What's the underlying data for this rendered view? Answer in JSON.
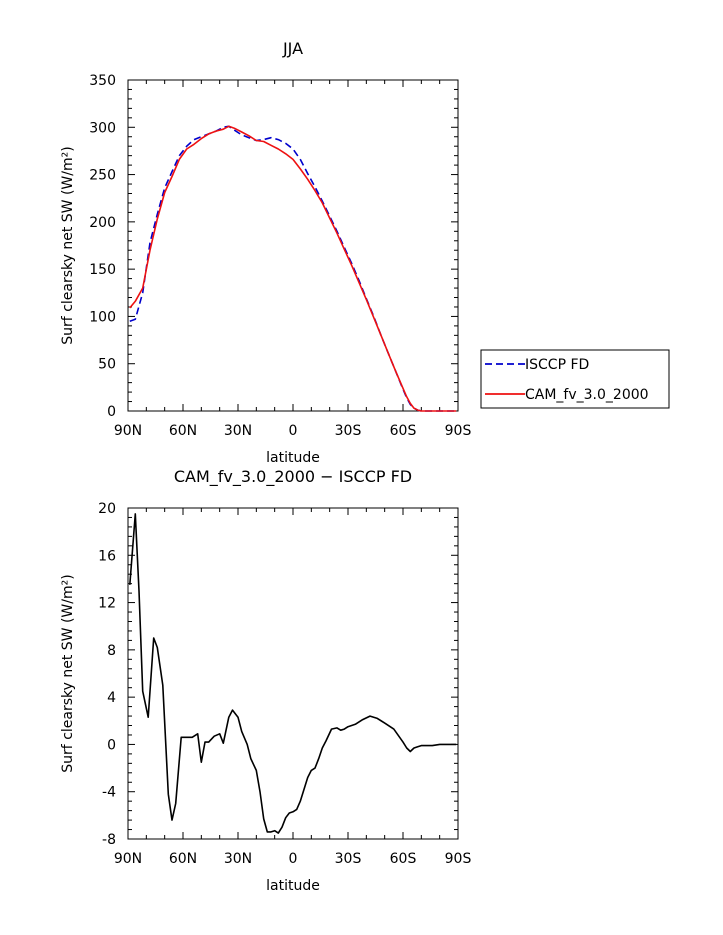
{
  "chart_data": [
    {
      "type": "line",
      "title": "JJA",
      "xlabel": "latitude",
      "ylabel": "Surf clearsky net SW (W/m²)",
      "xlim": [
        90,
        -90
      ],
      "ylim": [
        0,
        350
      ],
      "x_ticks": [
        90,
        60,
        30,
        0,
        -30,
        -60,
        -90
      ],
      "x_tick_labels": [
        "90N",
        "60N",
        "30N",
        "0",
        "30S",
        "60S",
        "90S"
      ],
      "y_ticks": [
        0,
        50,
        100,
        150,
        200,
        250,
        300,
        350
      ],
      "legend_position": "outside-right",
      "series": [
        {
          "name": "ISCCP FD",
          "color": "#0000cc",
          "dash": "dashed",
          "x": [
            89,
            86,
            82,
            78,
            74,
            70,
            66,
            62,
            58,
            54,
            50,
            46,
            42,
            38,
            35,
            32,
            28,
            24,
            20,
            16,
            12,
            8,
            4,
            0,
            -4,
            -8,
            -12,
            -16,
            -20,
            -24,
            -28,
            -32,
            -36,
            -40,
            -44,
            -48,
            -52,
            -56,
            -60,
            -62,
            -64,
            -66,
            -68,
            -70,
            -74,
            -78,
            -82,
            -86,
            -89
          ],
          "y": [
            95,
            97,
            125,
            178,
            208,
            236,
            253,
            270,
            280,
            287,
            290,
            293,
            296,
            300,
            301,
            297,
            292,
            289,
            286,
            287,
            289,
            287,
            283,
            277,
            266,
            251,
            237,
            222,
            206,
            190,
            173,
            156,
            138,
            119,
            100,
            80,
            61,
            42,
            23,
            14,
            7,
            3,
            1,
            0,
            0,
            0,
            0,
            0,
            0
          ]
        },
        {
          "name": "CAM_fv_3.0_2000",
          "color": "#ee1111",
          "dash": "solid",
          "x": [
            89,
            86,
            82,
            78,
            74,
            70,
            66,
            62,
            58,
            54,
            50,
            46,
            42,
            38,
            35,
            32,
            28,
            24,
            20,
            16,
            12,
            8,
            4,
            0,
            -4,
            -8,
            -12,
            -16,
            -20,
            -24,
            -28,
            -32,
            -36,
            -40,
            -44,
            -48,
            -52,
            -56,
            -60,
            -62,
            -64,
            -66,
            -68,
            -70,
            -74,
            -78,
            -82,
            -86,
            -89
          ],
          "y": [
            109,
            116,
            130,
            170,
            203,
            231,
            248,
            266,
            277,
            282,
            288,
            293,
            296,
            298,
            301,
            299,
            295,
            291,
            286,
            285,
            281,
            277,
            272,
            266,
            256,
            245,
            233,
            220,
            204,
            188,
            171,
            154,
            136,
            118,
            99,
            80,
            61,
            42,
            24,
            15,
            8,
            3,
            1,
            0,
            0,
            0,
            0,
            0,
            0
          ]
        }
      ]
    },
    {
      "type": "line",
      "title": "CAM_fv_3.0_2000 − ISCCP FD",
      "xlabel": "latitude",
      "ylabel": "Surf clearsky net SW (W/m²)",
      "xlim": [
        90,
        -90
      ],
      "ylim": [
        -8,
        20
      ],
      "x_ticks": [
        90,
        60,
        30,
        0,
        -30,
        -60,
        -90
      ],
      "x_tick_labels": [
        "90N",
        "60N",
        "30N",
        "0",
        "30S",
        "60S",
        "90S"
      ],
      "y_ticks": [
        -8,
        -4,
        0,
        4,
        8,
        12,
        16,
        20
      ],
      "series": [
        {
          "color": "#000000",
          "dash": "solid",
          "x": [
            89,
            86,
            84,
            82,
            79,
            76,
            74,
            71,
            68,
            66,
            64,
            61,
            58,
            55,
            52,
            50,
            48,
            46,
            43,
            40,
            38,
            35,
            33,
            30,
            28,
            25,
            23,
            20,
            18,
            16,
            14,
            12,
            10,
            8,
            6,
            4,
            2,
            0,
            -2,
            -4,
            -6,
            -8,
            -10,
            -12,
            -14,
            -16,
            -18,
            -21,
            -24,
            -26,
            -28,
            -30,
            -34,
            -38,
            -42,
            -46,
            -50,
            -55,
            -60,
            -62,
            -64,
            -66,
            -68,
            -70,
            -72,
            -76,
            -80,
            -85,
            -89
          ],
          "y": [
            13.5,
            19.5,
            13.0,
            4.5,
            2.3,
            9.0,
            8.2,
            5.0,
            -4.2,
            -6.4,
            -5.0,
            0.6,
            0.6,
            0.6,
            0.9,
            -1.5,
            0.2,
            0.2,
            0.7,
            0.9,
            0.1,
            2.3,
            2.9,
            2.3,
            1.1,
            0.0,
            -1.2,
            -2.2,
            -4.0,
            -6.3,
            -7.4,
            -7.4,
            -7.3,
            -7.5,
            -7.0,
            -6.2,
            -5.8,
            -5.7,
            -5.5,
            -4.8,
            -3.8,
            -2.8,
            -2.2,
            -2.0,
            -1.2,
            -0.3,
            0.3,
            1.3,
            1.4,
            1.2,
            1.3,
            1.5,
            1.7,
            2.1,
            2.4,
            2.2,
            1.8,
            1.3,
            0.2,
            -0.3,
            -0.6,
            -0.3,
            -0.2,
            -0.1,
            -0.1,
            -0.1,
            0.0,
            0.0,
            0.0
          ]
        }
      ]
    }
  ]
}
